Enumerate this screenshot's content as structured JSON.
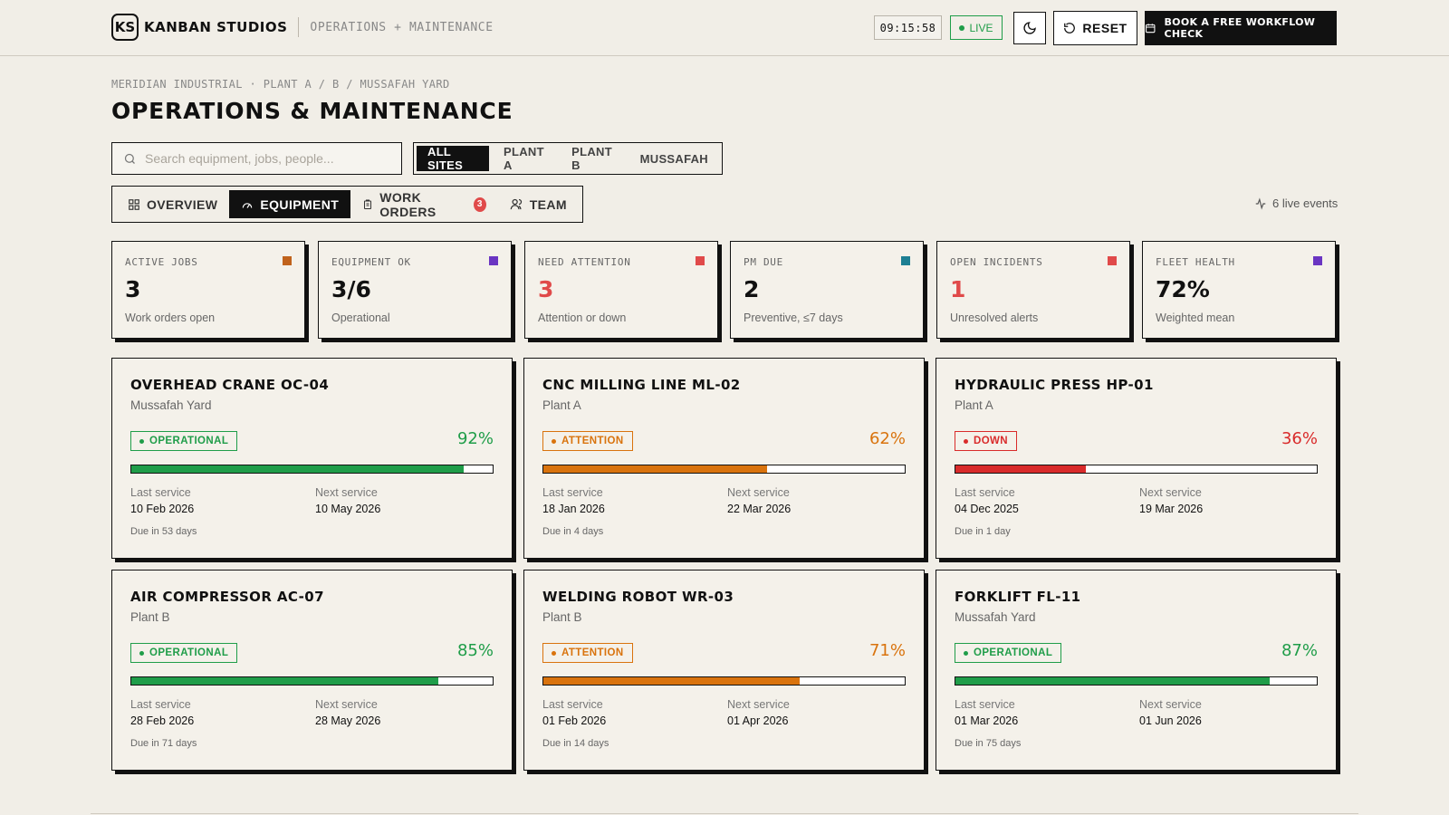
{
  "app": {
    "brand_logo": "KS",
    "brand_name": "KANBAN STUDIOS",
    "brand_sub": "OPERATIONS + MAINTENANCE",
    "clock": "09:15:58",
    "live_label": "LIVE",
    "reset_label": "RESET",
    "book_label": "BOOK A FREE WORKFLOW CHECK"
  },
  "header": {
    "breadcrumb": "MERIDIAN INDUSTRIAL · PLANT A / B / MUSSAFAH YARD",
    "title": "OPERATIONS & MAINTENANCE"
  },
  "search": {
    "placeholder": "Search equipment, jobs, people..."
  },
  "sites": [
    {
      "label": "ALL SITES",
      "active": true
    },
    {
      "label": "PLANT A",
      "active": false
    },
    {
      "label": "PLANT B",
      "active": false
    },
    {
      "label": "MUSSAFAH",
      "active": false
    }
  ],
  "tabs": [
    {
      "label": "OVERVIEW",
      "icon": "grid-icon",
      "active": false
    },
    {
      "label": "EQUIPMENT",
      "icon": "gauge-icon",
      "active": true
    },
    {
      "label": "WORK ORDERS",
      "icon": "clipboard-icon",
      "active": false,
      "badge": "3"
    },
    {
      "label": "TEAM",
      "icon": "users-icon",
      "active": false
    }
  ],
  "live_events": "6 live events",
  "kpis": [
    {
      "label": "ACTIVE JOBS",
      "value": "3",
      "sub": "Work orders open",
      "color": "#c0621c",
      "value_color": "#111111"
    },
    {
      "label": "EQUIPMENT OK",
      "value": "3/6",
      "sub": "Operational",
      "color": "#6a35c2",
      "value_color": "#111111"
    },
    {
      "label": "NEED ATTENTION",
      "value": "3",
      "sub": "Attention or down",
      "color": "#e04a4a",
      "value_color": "#e04a4a"
    },
    {
      "label": "PM DUE",
      "value": "2",
      "sub": "Preventive, ≤7 days",
      "color": "#1d7f93",
      "value_color": "#111111"
    },
    {
      "label": "OPEN INCIDENTS",
      "value": "1",
      "sub": "Unresolved alerts",
      "color": "#e04a4a",
      "value_color": "#e04a4a"
    },
    {
      "label": "FLEET HEALTH",
      "value": "72%",
      "sub": "Weighted mean",
      "color": "#6a35c2",
      "value_color": "#111111"
    }
  ],
  "equipment": [
    {
      "name": "OVERHEAD CRANE OC-04",
      "site": "Mussafah Yard",
      "status": "OPERATIONAL",
      "health": "92%",
      "health_value": 92,
      "color": "#1f9d49",
      "last_label": "Last service",
      "last": "10 Feb 2026",
      "next_label": "Next service",
      "next": "10 May 2026",
      "due": "Due in 53 days"
    },
    {
      "name": "CNC MILLING LINE ML-02",
      "site": "Plant A",
      "status": "ATTENTION",
      "health": "62%",
      "health_value": 62,
      "color": "#d9730d",
      "last_label": "Last service",
      "last": "18 Jan 2026",
      "next_label": "Next service",
      "next": "22 Mar 2026",
      "due": "Due in 4 days"
    },
    {
      "name": "HYDRAULIC PRESS HP-01",
      "site": "Plant A",
      "status": "DOWN",
      "health": "36%",
      "health_value": 36,
      "color": "#d92b2b",
      "last_label": "Last service",
      "last": "04 Dec 2025",
      "next_label": "Next service",
      "next": "19 Mar 2026",
      "due": "Due in 1 day"
    },
    {
      "name": "AIR COMPRESSOR AC-07",
      "site": "Plant B",
      "status": "OPERATIONAL",
      "health": "85%",
      "health_value": 85,
      "color": "#1f9d49",
      "last_label": "Last service",
      "last": "28 Feb 2026",
      "next_label": "Next service",
      "next": "28 May 2026",
      "due": "Due in 71 days"
    },
    {
      "name": "WELDING ROBOT WR-03",
      "site": "Plant B",
      "status": "ATTENTION",
      "health": "71%",
      "health_value": 71,
      "color": "#d9730d",
      "last_label": "Last service",
      "last": "01 Feb 2026",
      "next_label": "Next service",
      "next": "01 Apr 2026",
      "due": "Due in 14 days"
    },
    {
      "name": "FORKLIFT FL-11",
      "site": "Mussafah Yard",
      "status": "OPERATIONAL",
      "health": "87%",
      "health_value": 87,
      "color": "#1f9d49",
      "last_label": "Last service",
      "last": "01 Mar 2026",
      "next_label": "Next service",
      "next": "01 Jun 2026",
      "due": "Due in 75 days"
    }
  ]
}
